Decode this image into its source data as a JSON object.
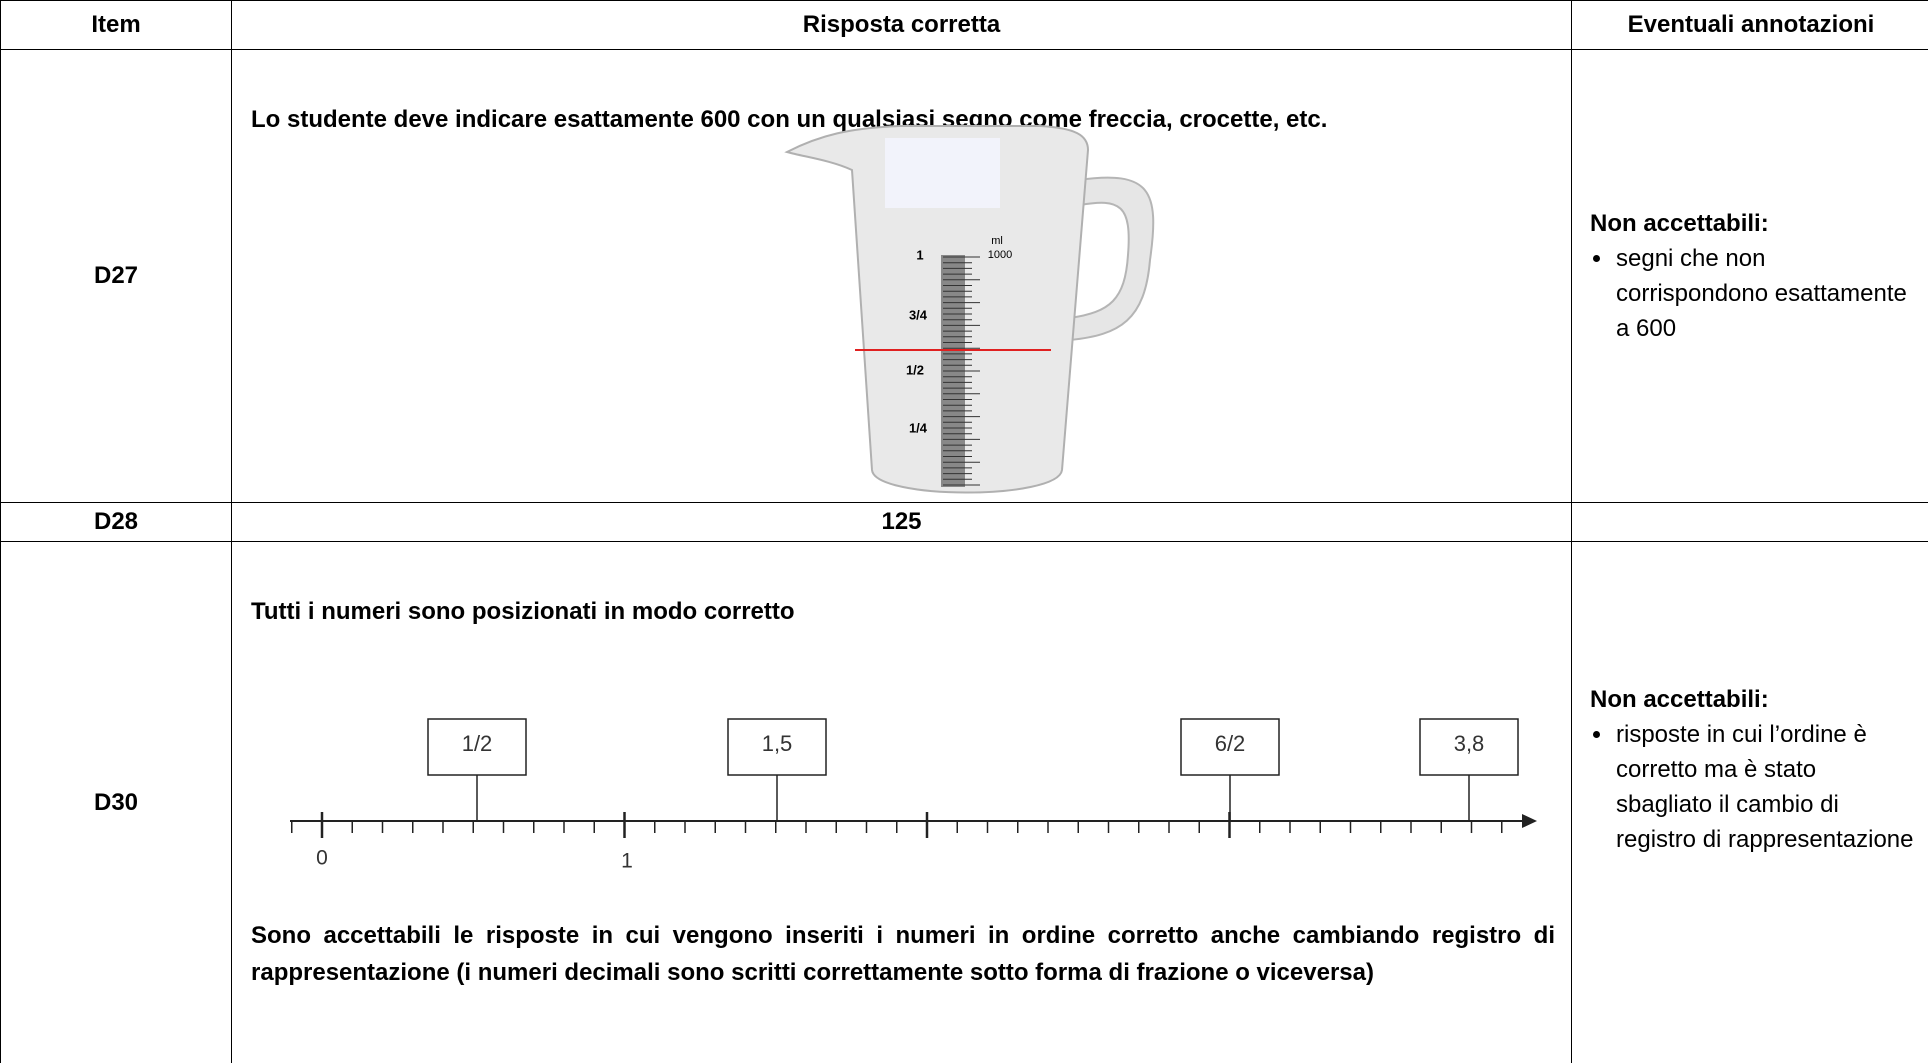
{
  "table": {
    "header": [
      "Item",
      "Risposta corretta",
      "Eventuali annotazioni"
    ],
    "rows": [
      {
        "item": "D27",
        "answer": {
          "text": "Lo studente deve indicare esattamente 600 con un qualsiasi segno come freccia, crocette, etc.",
          "figure": {
            "unit": "ml",
            "max": "1000",
            "marks": [
              "1",
              "3/4",
              "1/2",
              "1/4"
            ]
          }
        },
        "notes": {
          "title": "Non accettabili:",
          "bullets": [
            "segni che non corrispondono esattamente a 600"
          ]
        }
      },
      {
        "item": "D28",
        "answer": {
          "text": "125"
        }
      },
      {
        "item": "D30",
        "answer": {
          "text": "Tutti i numeri sono posizionati in modo corretto",
          "figure": {
            "boxes": [
              "1/2",
              "1,5",
              "6/2",
              "3,8"
            ],
            "axis_labels": [
              "0",
              "1"
            ]
          },
          "note": "Sono accettabili le risposte in cui vengono inseriti i numeri in ordine corretto anche cambiando registro di rappresentazione (i numeri decimali sono scritti correttamente sotto forma di frazione o viceversa)"
        },
        "notes": {
          "title": "Non accettabili:",
          "bullets": [
            "risposte in cui l’ordine è corretto ma è stato sbagliato il cambio di registro di rappresentazione"
          ]
        }
      }
    ]
  }
}
